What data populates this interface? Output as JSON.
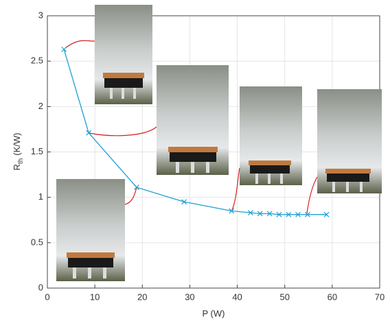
{
  "chart_data": {
    "type": "line",
    "xlabel": "P (W)",
    "ylabel": [
      "R",
      "th",
      "(K/W)"
    ],
    "x": [
      3.5,
      8.7,
      18.8,
      28.8,
      38.8,
      42.8,
      44.8,
      46.8,
      48.8,
      50.8,
      52.8,
      54.8,
      58.8
    ],
    "series": [
      {
        "color": "#1f9fd0",
        "values": [
          2.63,
          1.71,
          1.11,
          0.95,
          0.85,
          0.83,
          0.82,
          0.82,
          0.81,
          0.81,
          0.81,
          0.81,
          0.81
        ]
      }
    ],
    "xlim": [
      0,
      70
    ],
    "xticks": [
      0,
      10,
      20,
      30,
      40,
      50,
      60,
      70
    ],
    "ylim": [
      0,
      3
    ],
    "yticks": [
      0,
      0.5,
      1,
      1.5,
      2,
      2.5,
      3
    ],
    "grid": true
  }
}
